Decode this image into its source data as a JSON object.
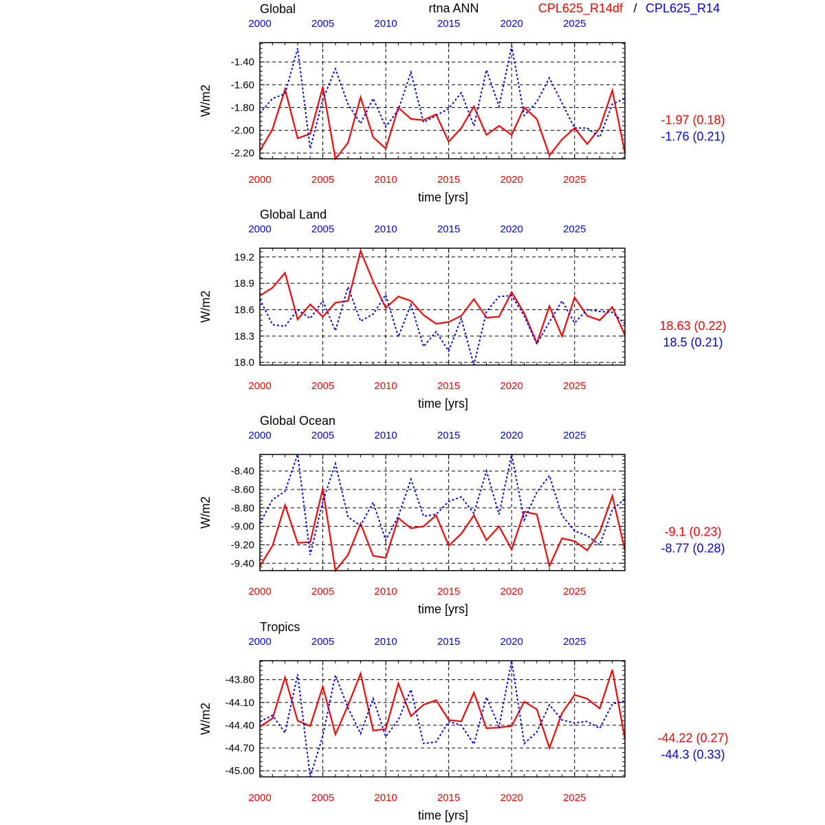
{
  "header": {
    "title": "rtna ANN",
    "legend_red": "CPL625_R14df",
    "legend_sep": "/",
    "legend_blue": "CPL625_R14"
  },
  "colors": {
    "red": "#ff0000",
    "blue": "#0000ff",
    "axis": "#000000"
  },
  "chart_data": [
    {
      "type": "line",
      "title": "Global",
      "xlabel": "time [yrs]",
      "ylabel": "W/m2",
      "xlim": [
        2000,
        2029
      ],
      "ylim": [
        -2.25,
        -1.23
      ],
      "xticks": [
        2000,
        2005,
        2010,
        2015,
        2020,
        2025
      ],
      "yticks": [
        -2.2,
        -2.0,
        -1.8,
        -1.6,
        -1.4
      ],
      "ytick_labels": [
        "-2.20",
        "-2.00",
        "-1.80",
        "-1.60",
        "-1.40"
      ],
      "years": [
        2000,
        2001,
        2002,
        2003,
        2004,
        2005,
        2006,
        2007,
        2008,
        2009,
        2010,
        2011,
        2012,
        2013,
        2014,
        2015,
        2016,
        2017,
        2018,
        2019,
        2020,
        2021,
        2022,
        2023,
        2024,
        2025,
        2026,
        2027,
        2028,
        2029
      ],
      "series": [
        {
          "name": "CPL625_R14df",
          "color": "#ff0000",
          "style": "solid",
          "stat": "-1.97 (0.18)",
          "values": [
            -2.18,
            -1.99,
            -1.64,
            -2.07,
            -2.03,
            -1.62,
            -2.25,
            -2.11,
            -1.71,
            -2.06,
            -2.16,
            -1.8,
            -1.9,
            -1.91,
            -1.86,
            -2.1,
            -1.98,
            -1.79,
            -2.04,
            -1.96,
            -2.04,
            -1.8,
            -1.9,
            -2.22,
            -2.08,
            -1.98,
            -2.12,
            -1.98,
            -1.65,
            -2.2
          ]
        },
        {
          "name": "CPL625_R14",
          "color": "#0000ff",
          "style": "dashed",
          "stat": "-1.76 (0.21)",
          "values": [
            -1.85,
            -1.72,
            -1.68,
            -1.28,
            -2.16,
            -1.73,
            -1.46,
            -1.77,
            -1.94,
            -1.72,
            -1.97,
            -1.82,
            -1.49,
            -1.93,
            -1.87,
            -1.81,
            -1.67,
            -1.96,
            -1.47,
            -1.79,
            -1.26,
            -1.87,
            -1.75,
            -1.54,
            -1.76,
            -1.98,
            -1.98,
            -2.06,
            -1.77,
            -1.72
          ]
        }
      ]
    },
    {
      "type": "line",
      "title": "Global Land",
      "xlabel": "time [yrs]",
      "ylabel": "W/m2",
      "xlim": [
        2000,
        2029
      ],
      "ylim": [
        17.97,
        19.3
      ],
      "xticks": [
        2000,
        2005,
        2010,
        2015,
        2020,
        2025
      ],
      "yticks": [
        18.0,
        18.3,
        18.6,
        18.9,
        19.2
      ],
      "ytick_labels": [
        "18.0",
        "18.3",
        "18.6",
        "18.9",
        "19.2"
      ],
      "years": [
        2000,
        2001,
        2002,
        2003,
        2004,
        2005,
        2006,
        2007,
        2008,
        2009,
        2010,
        2011,
        2012,
        2013,
        2014,
        2015,
        2016,
        2017,
        2018,
        2019,
        2020,
        2021,
        2022,
        2023,
        2024,
        2025,
        2026,
        2027,
        2028,
        2029
      ],
      "series": [
        {
          "name": "CPL625_R14df",
          "color": "#ff0000",
          "style": "solid",
          "stat": "18.63 (0.22)",
          "values": [
            18.76,
            18.85,
            19.02,
            18.49,
            18.66,
            18.52,
            18.68,
            18.7,
            19.27,
            18.92,
            18.62,
            18.75,
            18.7,
            18.54,
            18.44,
            18.46,
            18.53,
            18.72,
            18.51,
            18.52,
            18.8,
            18.56,
            18.22,
            18.64,
            18.3,
            18.74,
            18.53,
            18.48,
            18.63,
            18.31
          ]
        },
        {
          "name": "CPL625_R14",
          "color": "#0000ff",
          "style": "dashed",
          "stat": "18.5 (0.21)",
          "values": [
            18.72,
            18.43,
            18.41,
            18.6,
            18.5,
            18.7,
            18.36,
            18.86,
            18.47,
            18.55,
            18.77,
            18.29,
            18.66,
            18.18,
            18.35,
            18.13,
            18.5,
            17.97,
            18.58,
            18.75,
            18.76,
            18.53,
            18.21,
            18.46,
            18.7,
            18.45,
            18.6,
            18.58,
            18.57,
            18.44
          ]
        }
      ]
    },
    {
      "type": "line",
      "title": "Global Ocean",
      "xlabel": "time [yrs]",
      "ylabel": "W/m2",
      "xlim": [
        2000,
        2029
      ],
      "ylim": [
        -9.48,
        -8.22
      ],
      "xticks": [
        2000,
        2005,
        2010,
        2015,
        2020,
        2025
      ],
      "yticks": [
        -9.4,
        -9.2,
        -9.0,
        -8.8,
        -8.6,
        -8.4
      ],
      "ytick_labels": [
        "-9.40",
        "-9.20",
        "-9.00",
        "-8.80",
        "-8.60",
        "-8.40"
      ],
      "years": [
        2000,
        2001,
        2002,
        2003,
        2004,
        2005,
        2006,
        2007,
        2008,
        2009,
        2010,
        2011,
        2012,
        2013,
        2014,
        2015,
        2016,
        2017,
        2018,
        2019,
        2020,
        2021,
        2022,
        2023,
        2024,
        2025,
        2026,
        2027,
        2028,
        2029
      ],
      "series": [
        {
          "name": "CPL625_R14df",
          "color": "#ff0000",
          "style": "solid",
          "stat": "-9.1 (0.23)",
          "values": [
            -9.43,
            -9.21,
            -8.77,
            -9.18,
            -9.17,
            -8.59,
            -9.48,
            -9.31,
            -8.97,
            -9.32,
            -9.34,
            -8.91,
            -9.02,
            -9.0,
            -8.88,
            -9.21,
            -9.08,
            -8.88,
            -9.15,
            -9.0,
            -9.25,
            -8.84,
            -8.87,
            -9.43,
            -9.13,
            -9.16,
            -9.26,
            -9.06,
            -8.67,
            -9.26
          ]
        },
        {
          "name": "CPL625_R14",
          "color": "#0000ff",
          "style": "dashed",
          "stat": "-8.77 (0.28)",
          "values": [
            -8.97,
            -8.71,
            -8.62,
            -8.22,
            -9.31,
            -8.73,
            -8.32,
            -8.9,
            -8.99,
            -8.74,
            -9.15,
            -8.89,
            -8.49,
            -8.89,
            -8.87,
            -8.73,
            -8.68,
            -8.86,
            -8.4,
            -8.87,
            -8.22,
            -8.93,
            -8.63,
            -8.45,
            -8.88,
            -9.05,
            -9.1,
            -9.2,
            -8.82,
            -8.7
          ]
        }
      ]
    },
    {
      "type": "line",
      "title": "Tropics",
      "xlabel": "time [yrs]",
      "ylabel": "W/m2",
      "xlim": [
        2000,
        2029
      ],
      "ylim": [
        -45.08,
        -43.55
      ],
      "xticks": [
        2000,
        2005,
        2010,
        2015,
        2020,
        2025
      ],
      "yticks": [
        -45.0,
        -44.7,
        -44.4,
        -44.1,
        -43.8
      ],
      "ytick_labels": [
        "-45.00",
        "-44.70",
        "-44.40",
        "-44.10",
        "-43.80"
      ],
      "years": [
        2000,
        2001,
        2002,
        2003,
        2004,
        2005,
        2006,
        2007,
        2008,
        2009,
        2010,
        2011,
        2012,
        2013,
        2014,
        2015,
        2016,
        2017,
        2018,
        2019,
        2020,
        2021,
        2022,
        2023,
        2024,
        2025,
        2026,
        2027,
        2028,
        2029
      ],
      "series": [
        {
          "name": "CPL625_R14df",
          "color": "#ff0000",
          "style": "solid",
          "stat": "-44.22 (0.27)",
          "values": [
            -44.42,
            -44.31,
            -43.77,
            -44.34,
            -44.41,
            -43.89,
            -44.52,
            -44.14,
            -43.72,
            -44.47,
            -44.45,
            -43.85,
            -44.28,
            -44.13,
            -44.07,
            -44.33,
            -44.35,
            -43.97,
            -44.44,
            -44.43,
            -44.41,
            -44.09,
            -44.19,
            -44.7,
            -44.24,
            -44.0,
            -44.05,
            -44.18,
            -43.67,
            -44.58
          ]
        },
        {
          "name": "CPL625_R14",
          "color": "#0000ff",
          "style": "dashed",
          "stat": "-44.3 (0.33)",
          "values": [
            -44.35,
            -44.27,
            -44.5,
            -43.73,
            -45.08,
            -44.54,
            -43.74,
            -44.17,
            -44.51,
            -44.05,
            -44.55,
            -44.33,
            -43.93,
            -44.64,
            -44.62,
            -44.35,
            -44.4,
            -44.65,
            -44.03,
            -44.42,
            -43.55,
            -44.64,
            -44.49,
            -44.13,
            -44.33,
            -44.37,
            -44.35,
            -44.44,
            -44.12,
            -44.08
          ]
        }
      ]
    }
  ]
}
